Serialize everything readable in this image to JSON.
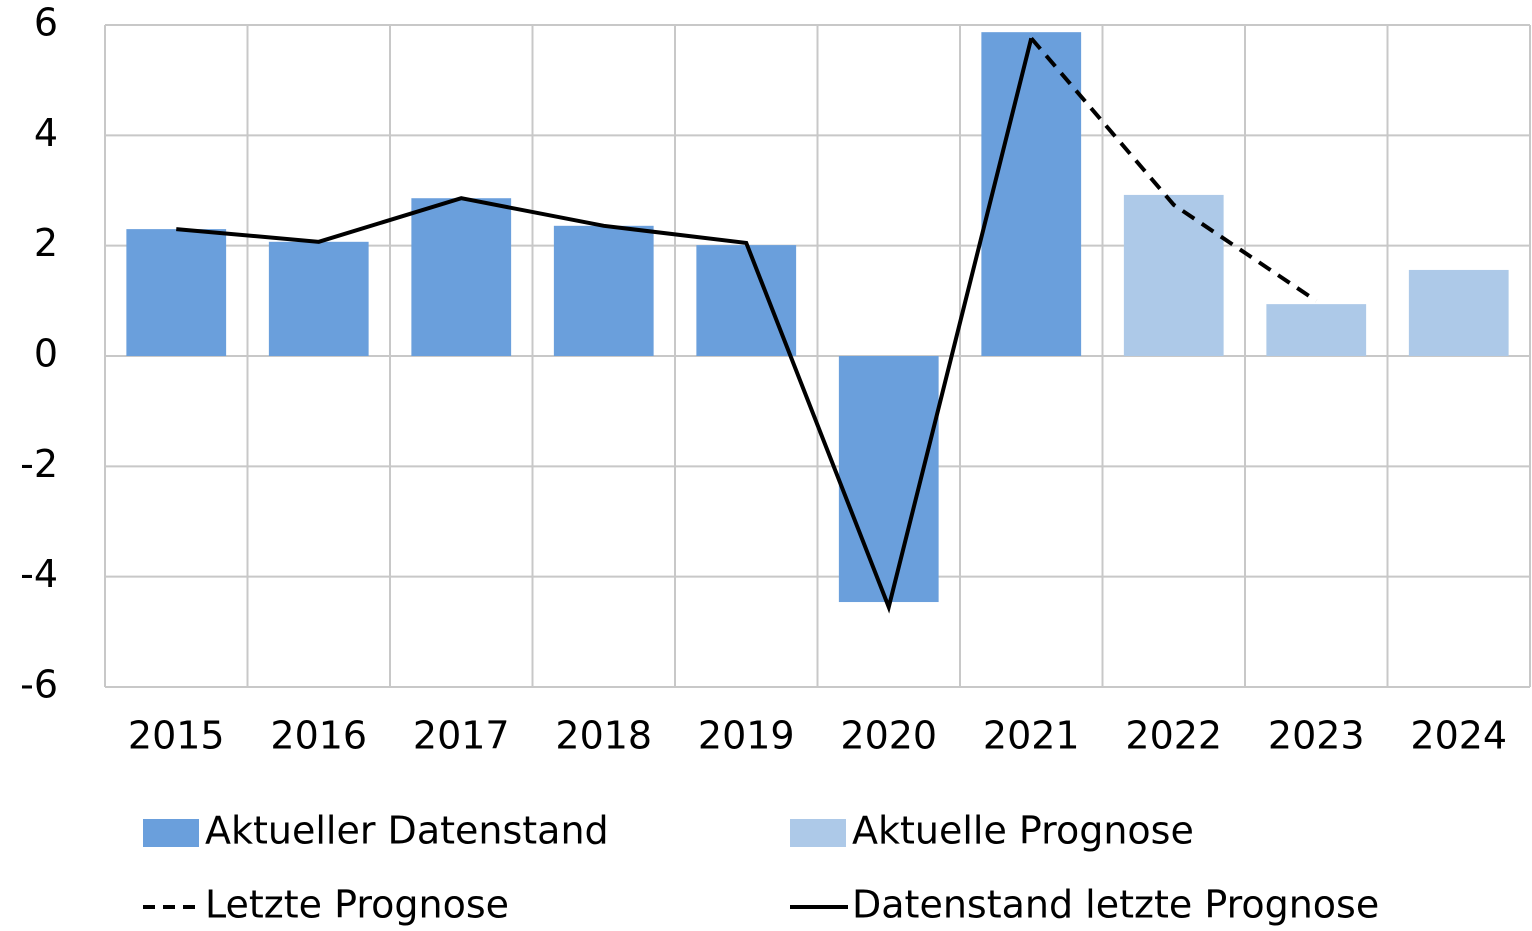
{
  "chart_data": {
    "type": "bar_line",
    "categories": [
      "2015",
      "2016",
      "2017",
      "2018",
      "2019",
      "2020",
      "2021",
      "2022",
      "2023",
      "2024"
    ],
    "series": [
      {
        "name": "Aktueller Datenstand",
        "kind": "bar",
        "color": "#6a9fdc",
        "values": [
          2.3,
          2.07,
          2.86,
          2.36,
          2.01,
          -4.46,
          5.87,
          null,
          null,
          null
        ]
      },
      {
        "name": "Aktuelle Prognose",
        "kind": "bar",
        "color": "#adc9e8",
        "values": [
          null,
          null,
          null,
          null,
          null,
          null,
          null,
          2.92,
          0.94,
          1.56
        ]
      },
      {
        "name": "Letzte Prognose",
        "kind": "line",
        "dash": true,
        "color": "#000000",
        "values": [
          null,
          null,
          null,
          null,
          null,
          null,
          5.76,
          2.74,
          1.0,
          null
        ]
      },
      {
        "name": "Datenstand letzte Prognose",
        "kind": "line",
        "dash": false,
        "color": "#000000",
        "values": [
          2.3,
          2.07,
          2.86,
          2.36,
          2.05,
          -4.55,
          5.76,
          null,
          null,
          null
        ]
      }
    ],
    "ylim": [
      -6,
      6
    ],
    "yticks": [
      -6,
      -4,
      -2,
      0,
      2,
      4,
      6
    ],
    "grid": true
  }
}
